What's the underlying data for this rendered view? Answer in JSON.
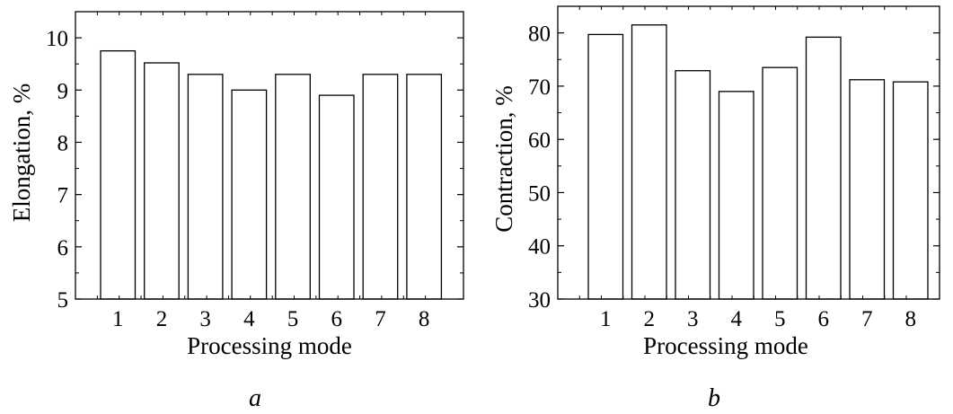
{
  "chart_data": [
    {
      "type": "bar",
      "categories": [
        "1",
        "2",
        "3",
        "4",
        "5",
        "6",
        "7",
        "8"
      ],
      "values": [
        9.75,
        9.52,
        9.3,
        9.0,
        9.3,
        8.9,
        9.3,
        9.3
      ],
      "xlabel": "Processing mode",
      "ylabel": "Elongation, %",
      "ylim": [
        5,
        10.5
      ],
      "yticks": [
        5,
        6,
        7,
        8,
        9,
        10
      ],
      "caption": "a",
      "grid": false,
      "bar_fill": "#ffffff",
      "bar_stroke": "#000000"
    },
    {
      "type": "bar",
      "categories": [
        "1",
        "2",
        "3",
        "4",
        "5",
        "6",
        "7",
        "8"
      ],
      "values": [
        79.7,
        81.5,
        72.9,
        69.0,
        73.5,
        79.2,
        71.2,
        70.8
      ],
      "xlabel": "Processing mode",
      "ylabel": "Contraction, %",
      "ylim": [
        30,
        85
      ],
      "yticks": [
        30,
        40,
        50,
        60,
        70,
        80
      ],
      "caption": "b",
      "grid": false,
      "bar_fill": "#ffffff",
      "bar_stroke": "#000000"
    }
  ]
}
